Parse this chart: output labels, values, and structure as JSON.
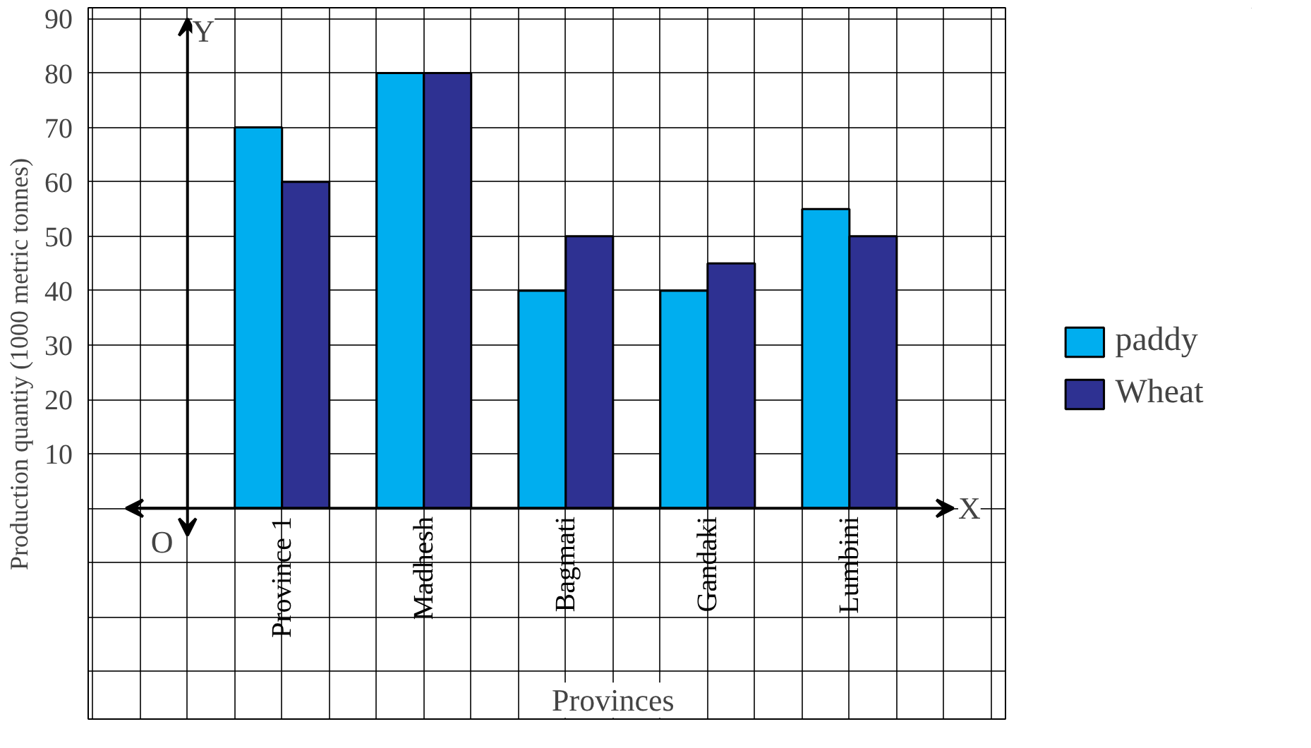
{
  "chart_data": {
    "type": "bar",
    "xlabel": "Provinces",
    "ylabel": "Production quantiy (1000 metric tonnes)",
    "categories": [
      "Province 1",
      "Madhesh",
      "Bagmati",
      "Gandaki",
      "Lumbini"
    ],
    "series": [
      {
        "name": "paddy",
        "color": "#00aeef",
        "values": [
          70,
          80,
          40,
          40,
          55
        ]
      },
      {
        "name": "Wheat",
        "color": "#2e3192",
        "values": [
          60,
          80,
          50,
          45,
          50
        ]
      }
    ],
    "ylim": [
      -39,
      92
    ],
    "yticks": [
      10,
      20,
      30,
      40,
      50,
      60,
      70,
      80,
      90
    ],
    "grid": true,
    "legend": "right",
    "annotations": [
      "X",
      "Y",
      "O"
    ]
  }
}
